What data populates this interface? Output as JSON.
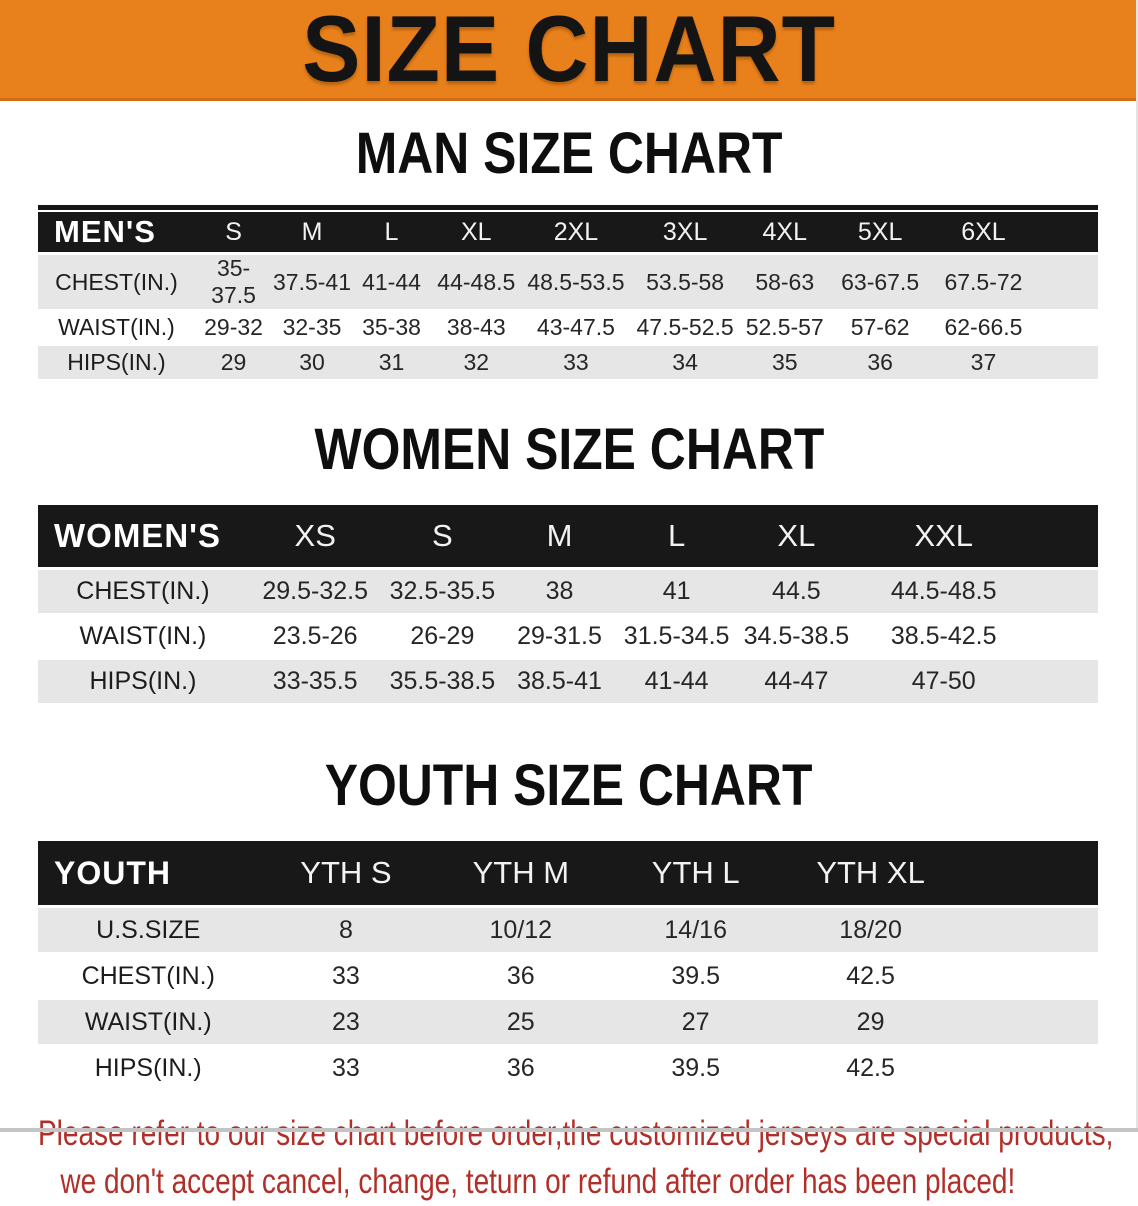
{
  "banner": {
    "title": "SIZE CHART"
  },
  "sections": {
    "men": {
      "title": "MAN SIZE CHART",
      "table": {
        "label": "MEN'S",
        "columns": [
          "S",
          "M",
          "L",
          "XL",
          "2XL",
          "3XL",
          "4XL",
          "5XL",
          "6XL"
        ],
        "rows": [
          {
            "label": "CHEST(IN.)",
            "values": [
              "35-37.5",
              "37.5-41",
              "41-44",
              "44-48.5",
              "48.5-53.5",
              "53.5-58",
              "58-63",
              "63-67.5",
              "67.5-72"
            ]
          },
          {
            "label": "WAIST(IN.)",
            "values": [
              "29-32",
              "32-35",
              "35-38",
              "38-43",
              "43-47.5",
              "47.5-52.5",
              "52.5-57",
              "57-62",
              "62-66.5"
            ]
          },
          {
            "label": "HIPS(IN.)",
            "values": [
              "29",
              "30",
              "31",
              "32",
              "33",
              "34",
              "35",
              "36",
              "37"
            ]
          }
        ]
      }
    },
    "women": {
      "title": "WOMEN SIZE CHART",
      "table": {
        "label": "WOMEN'S",
        "columns": [
          "XS",
          "S",
          "M",
          "L",
          "XL",
          "XXL"
        ],
        "rows": [
          {
            "label": "CHEST(IN.)",
            "values": [
              "29.5-32.5",
              "32.5-35.5",
              "38",
              "41",
              "44.5",
              "44.5-48.5"
            ]
          },
          {
            "label": "WAIST(IN.)",
            "values": [
              "23.5-26",
              "26-29",
              "29-31.5",
              "31.5-34.5",
              "34.5-38.5",
              "38.5-42.5"
            ]
          },
          {
            "label": "HIPS(IN.)",
            "values": [
              "33-35.5",
              "35.5-38.5",
              "38.5-41",
              "41-44",
              "44-47",
              "47-50"
            ]
          }
        ]
      }
    },
    "youth": {
      "title": "YOUTH SIZE CHART",
      "table": {
        "label": "YOUTH",
        "columns": [
          "YTH S",
          "YTH M",
          "YTH L",
          "YTH XL"
        ],
        "rows": [
          {
            "label": "U.S.SIZE",
            "values": [
              "8",
              "10/12",
              "14/16",
              "18/20"
            ]
          },
          {
            "label": "CHEST(IN.)",
            "values": [
              "33",
              "36",
              "39.5",
              "42.5"
            ]
          },
          {
            "label": "WAIST(IN.)",
            "values": [
              "23",
              "25",
              "27",
              "29"
            ]
          },
          {
            "label": "HIPS(IN.)",
            "values": [
              "33",
              "36",
              "39.5",
              "42.5"
            ]
          }
        ]
      }
    }
  },
  "footer": {
    "line1": "Please refer to our size chart before order,the customized jerseys are special products,",
    "line2": "we don't accept cancel, change, teturn or refund after order has been placed!"
  },
  "colors": {
    "banner_orange": "#e8801b",
    "banner_edge": "#cf6d10",
    "header_black": "#181818",
    "row_gray": "#e6e6e6",
    "notice_red": "#b12f28"
  }
}
